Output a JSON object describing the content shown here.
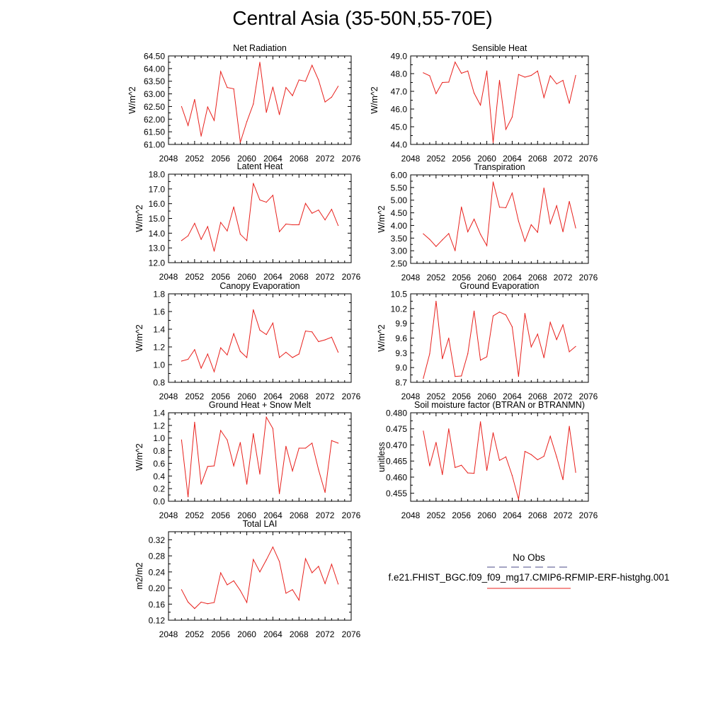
{
  "title": "Central Asia (35-50N,55-70E)",
  "colors": {
    "series": "#e8201c",
    "obs": "#4a4a8a",
    "axis": "#000000"
  },
  "legend": {
    "obs_label": "No Obs",
    "case_label": "f.e21.FHIST_BGC.f09_f09_mg17.CMIP6-RFMIP-ERF-histghg.001"
  },
  "chart_data": [
    {
      "type": "line",
      "title": "Net Radiation",
      "ylabel": "W/m^2",
      "xlim": [
        2048,
        2076
      ],
      "ylim": [
        61.0,
        64.5
      ],
      "xticks": [
        2048,
        2052,
        2056,
        2060,
        2064,
        2068,
        2072,
        2076
      ],
      "yticks": [
        "61.00",
        "61.50",
        "62.00",
        "62.50",
        "63.00",
        "63.50",
        "64.00",
        "64.50"
      ],
      "x": [
        2050,
        2051,
        2052,
        2053,
        2054,
        2055,
        2056,
        2057,
        2058,
        2059,
        2060,
        2061,
        2062,
        2063,
        2064,
        2065,
        2066,
        2067,
        2068,
        2069,
        2070,
        2071,
        2072,
        2073,
        2074
      ],
      "values": [
        62.5,
        61.75,
        62.78,
        61.33,
        62.48,
        61.95,
        63.88,
        63.25,
        63.2,
        61.08,
        61.9,
        62.6,
        64.25,
        62.27,
        63.27,
        62.18,
        63.25,
        62.93,
        63.55,
        63.5,
        64.13,
        63.55,
        62.68,
        62.87,
        63.3
      ]
    },
    {
      "type": "line",
      "title": "Sensible Heat",
      "ylabel": "W/m^2",
      "xlim": [
        2048,
        2076
      ],
      "ylim": [
        44.0,
        49.0
      ],
      "xticks": [
        2048,
        2052,
        2056,
        2060,
        2064,
        2068,
        2072,
        2076
      ],
      "yticks": [
        "44.0",
        "45.0",
        "46.0",
        "47.0",
        "48.0",
        "49.0"
      ],
      "x": [
        2050,
        2051,
        2052,
        2053,
        2054,
        2055,
        2056,
        2057,
        2058,
        2059,
        2060,
        2061,
        2062,
        2063,
        2064,
        2065,
        2066,
        2067,
        2068,
        2069,
        2070,
        2071,
        2072,
        2073,
        2074
      ],
      "values": [
        48.05,
        47.88,
        46.87,
        47.5,
        47.52,
        48.65,
        48.02,
        48.15,
        46.9,
        46.22,
        48.15,
        44.1,
        47.62,
        44.85,
        45.55,
        47.95,
        47.8,
        47.9,
        48.15,
        46.65,
        47.88,
        47.42,
        47.62,
        46.32,
        47.9
      ]
    },
    {
      "type": "line",
      "title": "Latent Heat",
      "ylabel": "W/m^2",
      "xlim": [
        2048,
        2076
      ],
      "ylim": [
        12.0,
        18.0
      ],
      "xticks": [
        2048,
        2052,
        2056,
        2060,
        2064,
        2068,
        2072,
        2076
      ],
      "yticks": [
        "12.0",
        "13.0",
        "14.0",
        "15.0",
        "16.0",
        "17.0",
        "18.0"
      ],
      "x": [
        2050,
        2051,
        2052,
        2053,
        2054,
        2055,
        2056,
        2057,
        2058,
        2059,
        2060,
        2061,
        2062,
        2063,
        2064,
        2065,
        2066,
        2067,
        2068,
        2069,
        2070,
        2071,
        2072,
        2073,
        2074
      ],
      "values": [
        13.5,
        13.82,
        14.67,
        13.58,
        14.45,
        12.78,
        14.73,
        14.15,
        15.78,
        13.93,
        13.5,
        17.38,
        16.25,
        16.1,
        16.57,
        14.1,
        14.62,
        14.57,
        14.57,
        16.02,
        15.35,
        15.57,
        14.9,
        15.62,
        14.52
      ]
    },
    {
      "type": "line",
      "title": "Transpiration",
      "ylabel": "W/m^2",
      "xlim": [
        2048,
        2076
      ],
      "ylim": [
        2.5,
        6.0
      ],
      "xticks": [
        2048,
        2052,
        2056,
        2060,
        2064,
        2068,
        2072,
        2076
      ],
      "yticks": [
        "2.50",
        "3.00",
        "3.50",
        "4.00",
        "4.50",
        "5.00",
        "5.50",
        "6.00"
      ],
      "x": [
        2050,
        2051,
        2052,
        2053,
        2054,
        2055,
        2056,
        2057,
        2058,
        2059,
        2060,
        2061,
        2062,
        2063,
        2064,
        2065,
        2066,
        2067,
        2068,
        2069,
        2070,
        2071,
        2072,
        2073,
        2074
      ],
      "values": [
        3.67,
        3.45,
        3.17,
        3.43,
        3.68,
        3.0,
        4.73,
        3.75,
        4.25,
        3.65,
        3.2,
        5.72,
        4.72,
        4.7,
        5.28,
        4.17,
        3.37,
        4.03,
        3.73,
        5.48,
        4.07,
        4.78,
        3.75,
        4.95,
        3.9
      ]
    },
    {
      "type": "line",
      "title": "Canopy Evaporation",
      "ylabel": "W/m^2",
      "xlim": [
        2048,
        2076
      ],
      "ylim": [
        0.8,
        1.8
      ],
      "xticks": [
        2048,
        2052,
        2056,
        2060,
        2064,
        2068,
        2072,
        2076
      ],
      "yticks": [
        "0.8",
        "1.0",
        "1.2",
        "1.4",
        "1.6",
        "1.8"
      ],
      "x": [
        2050,
        2051,
        2052,
        2053,
        2054,
        2055,
        2056,
        2057,
        2058,
        2059,
        2060,
        2061,
        2062,
        2063,
        2064,
        2065,
        2066,
        2067,
        2068,
        2069,
        2070,
        2071,
        2072,
        2073,
        2074
      ],
      "values": [
        1.04,
        1.06,
        1.17,
        0.96,
        1.12,
        0.92,
        1.19,
        1.11,
        1.35,
        1.15,
        1.08,
        1.62,
        1.39,
        1.34,
        1.47,
        1.08,
        1.14,
        1.08,
        1.12,
        1.38,
        1.37,
        1.26,
        1.28,
        1.31,
        1.14
      ]
    },
    {
      "type": "line",
      "title": "Ground Evaporation",
      "ylabel": "W/m^2",
      "xlim": [
        2048,
        2076
      ],
      "ylim": [
        8.7,
        10.5
      ],
      "xticks": [
        2048,
        2052,
        2056,
        2060,
        2064,
        2068,
        2072,
        2076
      ],
      "yticks": [
        "8.7",
        "9.0",
        "9.3",
        "9.6",
        "9.9",
        "10.2",
        "10.5"
      ],
      "x": [
        2050,
        2051,
        2052,
        2053,
        2054,
        2055,
        2056,
        2057,
        2058,
        2059,
        2060,
        2061,
        2062,
        2063,
        2064,
        2065,
        2066,
        2067,
        2068,
        2069,
        2070,
        2071,
        2072,
        2073,
        2074
      ],
      "values": [
        8.78,
        9.28,
        10.35,
        9.18,
        9.6,
        8.82,
        8.83,
        9.28,
        10.15,
        9.15,
        9.22,
        10.05,
        10.13,
        10.07,
        9.83,
        8.82,
        10.1,
        9.42,
        9.68,
        9.2,
        9.92,
        9.57,
        9.87,
        9.32,
        9.43
      ]
    },
    {
      "type": "line",
      "title": "Ground Heat + Snow Melt",
      "ylabel": "W/m^2",
      "xlim": [
        2048,
        2076
      ],
      "ylim": [
        0.0,
        1.4
      ],
      "xticks": [
        2048,
        2052,
        2056,
        2060,
        2064,
        2068,
        2072,
        2076
      ],
      "yticks": [
        "0.0",
        "0.2",
        "0.4",
        "0.6",
        "0.8",
        "1.0",
        "1.2",
        "1.4"
      ],
      "x": [
        2050,
        2051,
        2052,
        2053,
        2054,
        2055,
        2056,
        2057,
        2058,
        2059,
        2060,
        2061,
        2062,
        2063,
        2064,
        2065,
        2066,
        2067,
        2068,
        2069,
        2070,
        2071,
        2072,
        2073,
        2074
      ],
      "values": [
        0.97,
        0.07,
        1.25,
        0.27,
        0.55,
        0.56,
        1.12,
        0.97,
        0.56,
        0.93,
        0.27,
        1.07,
        0.43,
        1.33,
        1.15,
        0.12,
        0.87,
        0.48,
        0.84,
        0.84,
        0.92,
        0.5,
        0.14,
        0.96,
        0.92
      ]
    },
    {
      "type": "line",
      "title": "Soil moisture factor (BTRAN or BTRANMN)",
      "ylabel": "unitless",
      "xlim": [
        2048,
        2076
      ],
      "ylim": [
        0.4525,
        0.48
      ],
      "xticks": [
        2048,
        2052,
        2056,
        2060,
        2064,
        2068,
        2072,
        2076
      ],
      "yticks": [
        "0.455",
        "0.460",
        "0.465",
        "0.470",
        "0.475",
        "0.480"
      ],
      "x": [
        2050,
        2051,
        2052,
        2053,
        2054,
        2055,
        2056,
        2057,
        2058,
        2059,
        2060,
        2061,
        2062,
        2063,
        2064,
        2065,
        2066,
        2067,
        2068,
        2069,
        2070,
        2071,
        2072,
        2073,
        2074
      ],
      "values": [
        0.4743,
        0.4635,
        0.4708,
        0.4608,
        0.475,
        0.463,
        0.4637,
        0.4613,
        0.4612,
        0.4772,
        0.4621,
        0.4738,
        0.4652,
        0.4663,
        0.4605,
        0.4531,
        0.468,
        0.467,
        0.4654,
        0.4665,
        0.4727,
        0.4663,
        0.4592,
        0.4758,
        0.4615
      ]
    },
    {
      "type": "line",
      "title": "Total LAI",
      "ylabel": "m2/m2",
      "xlim": [
        2048,
        2076
      ],
      "ylim": [
        0.12,
        0.34
      ],
      "xticks": [
        2048,
        2052,
        2056,
        2060,
        2064,
        2068,
        2072,
        2076
      ],
      "yticks": [
        "0.12",
        "0.16",
        "0.20",
        "0.24",
        "0.28",
        "0.32"
      ],
      "x": [
        2050,
        2051,
        2052,
        2053,
        2054,
        2055,
        2056,
        2057,
        2058,
        2059,
        2060,
        2061,
        2062,
        2063,
        2064,
        2065,
        2066,
        2067,
        2068,
        2069,
        2070,
        2071,
        2072,
        2073,
        2074
      ],
      "values": [
        0.196,
        0.165,
        0.149,
        0.165,
        0.161,
        0.164,
        0.238,
        0.208,
        0.218,
        0.194,
        0.164,
        0.271,
        0.24,
        0.27,
        0.302,
        0.266,
        0.187,
        0.196,
        0.17,
        0.273,
        0.238,
        0.254,
        0.211,
        0.259,
        0.21
      ]
    }
  ]
}
